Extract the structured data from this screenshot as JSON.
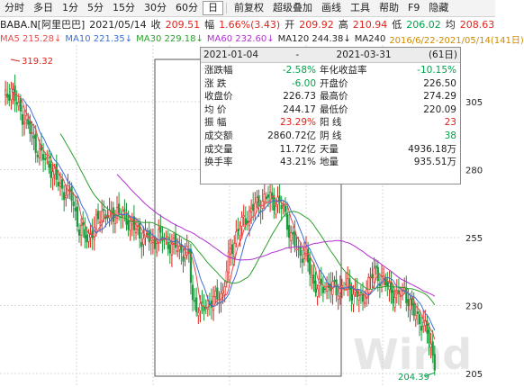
{
  "toolbar": [
    "分时",
    "多日",
    "1分",
    "5分",
    "15分",
    "30分",
    "60分",
    "日",
    "前复权",
    "超级叠加",
    "画线",
    "工具",
    "帮助",
    "F9",
    "隐藏"
  ],
  "quote": {
    "symbol": "BABA.N[阿里巴巴]",
    "date": "2021/05/14",
    "close_label": "收",
    "close": "209.51",
    "change_label": "幅",
    "change": "1.66%(3.43)",
    "open_label": "开",
    "open": "209.92",
    "high_label": "高",
    "high": "210.94",
    "low_label": "低",
    "low": "206.02",
    "last_label": "均",
    "last": "208.63"
  },
  "ma_line": {
    "ma5": "MA5 215.28↓",
    "ma10": "MA10 221.35↓",
    "ma30": "MA30 229.18↓",
    "ma60": "MA60 232.60↓",
    "ma120": "MA120 244.38↓",
    "ma240": "MA240",
    "range": "2016/6/22-2021/05/14(141日)"
  },
  "popup": {
    "start": "2021-01-04",
    "dash": "-",
    "end": "2021-03-31",
    "days": "(61日)",
    "rows": [
      [
        "涨跌幅",
        "-2.58%",
        "年化收益率",
        "-10.15%"
      ],
      [
        "涨  跌",
        "-6.00",
        "开盘价",
        "226.50"
      ],
      [
        "收盘价",
        "226.73",
        "最高价",
        "274.29"
      ],
      [
        "均  价",
        "244.17",
        "最低价",
        "220.09"
      ],
      [
        "振  幅",
        "23.29%",
        "阳  线",
        "23"
      ],
      [
        "成交额",
        "2860.72亿",
        "阴  线",
        "38"
      ],
      [
        "成交量",
        "11.72亿",
        "天量",
        "4936.18万"
      ],
      [
        "换手率",
        "43.21%",
        "地量",
        "935.51万"
      ]
    ],
    "value_colors": [
      "#00a24a",
      "#00a24a",
      "#222222",
      "#222222",
      "#e0231b",
      "#222222",
      "#222222",
      "#222222"
    ],
    "right_colors": [
      "#00a24a",
      "#222222",
      "#222222",
      "#222222",
      "#e0231b",
      "#00a24a",
      "#222222",
      "#222222"
    ]
  },
  "chart": {
    "y_ticks": [
      "305",
      "280",
      "255",
      "230",
      "205"
    ],
    "high_label": "319.32",
    "low_label": "204.39",
    "watermark": "Wind",
    "colors": {
      "up": "#e0231b",
      "down": "#1a9a3c",
      "ma5": "#e84a4a",
      "ma10": "#3b6fd8",
      "ma30": "#2ca02c",
      "ma60": "#b030d0",
      "grid": "#d8d8d8"
    }
  }
}
